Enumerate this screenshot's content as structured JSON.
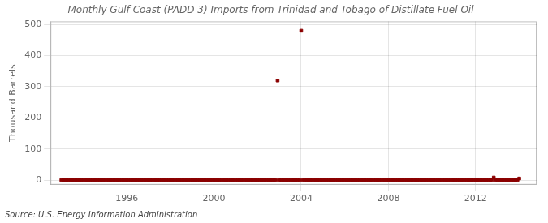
{
  "chart_data": {
    "type": "scatter",
    "title": "Monthly Gulf Coast (PADD 3) Imports from Trinidad and Tobago of Distillate Fuel Oil",
    "ylabel": "Thousand Barrels",
    "source": "Source: U.S. Energy Information Administration",
    "color": "#8b0000",
    "marker": "square",
    "grid": true,
    "xlim": [
      1992.5,
      2014.8
    ],
    "ylim": [
      -15,
      510
    ],
    "xticks": [
      1996,
      2000,
      2004,
      2008,
      2012
    ],
    "yticks": [
      0,
      100,
      200,
      300,
      400,
      500
    ],
    "x": [
      1993.0,
      1993.083,
      1993.167,
      1993.25,
      1993.333,
      1993.417,
      1993.5,
      1993.583,
      1993.667,
      1993.75,
      1993.833,
      1993.917,
      1994.0,
      1994.083,
      1994.167,
      1994.25,
      1994.333,
      1994.417,
      1994.5,
      1994.583,
      1994.667,
      1994.75,
      1994.833,
      1994.917,
      1995.0,
      1995.083,
      1995.167,
      1995.25,
      1995.333,
      1995.417,
      1995.5,
      1995.583,
      1995.667,
      1995.75,
      1995.833,
      1995.917,
      1996.0,
      1996.083,
      1996.167,
      1996.25,
      1996.333,
      1996.417,
      1996.5,
      1996.583,
      1996.667,
      1996.75,
      1996.833,
      1996.917,
      1997.0,
      1997.083,
      1997.167,
      1997.25,
      1997.333,
      1997.417,
      1997.5,
      1997.583,
      1997.667,
      1997.75,
      1997.833,
      1997.917,
      1998.0,
      1998.083,
      1998.167,
      1998.25,
      1998.333,
      1998.417,
      1998.5,
      1998.583,
      1998.667,
      1998.75,
      1998.833,
      1998.917,
      1999.0,
      1999.083,
      1999.167,
      1999.25,
      1999.333,
      1999.417,
      1999.5,
      1999.583,
      1999.667,
      1999.75,
      1999.833,
      1999.917,
      2000.0,
      2000.083,
      2000.167,
      2000.25,
      2000.333,
      2000.417,
      2000.5,
      2000.583,
      2000.667,
      2000.75,
      2000.833,
      2000.917,
      2001.0,
      2001.083,
      2001.167,
      2001.25,
      2001.333,
      2001.417,
      2001.5,
      2001.583,
      2001.667,
      2001.75,
      2001.833,
      2001.917,
      2002.0,
      2002.083,
      2002.167,
      2002.25,
      2002.333,
      2002.417,
      2002.5,
      2002.583,
      2002.667,
      2002.75,
      2002.833,
      2002.917,
      2003.0,
      2003.083,
      2003.167,
      2003.25,
      2003.333,
      2003.417,
      2003.5,
      2003.583,
      2003.667,
      2003.75,
      2003.833,
      2003.917,
      2004.0,
      2004.083,
      2004.167,
      2004.25,
      2004.333,
      2004.417,
      2004.5,
      2004.583,
      2004.667,
      2004.75,
      2004.833,
      2004.917,
      2005.0,
      2005.083,
      2005.167,
      2005.25,
      2005.333,
      2005.417,
      2005.5,
      2005.583,
      2005.667,
      2005.75,
      2005.833,
      2005.917,
      2006.0,
      2006.083,
      2006.167,
      2006.25,
      2006.333,
      2006.417,
      2006.5,
      2006.583,
      2006.667,
      2006.75,
      2006.833,
      2006.917,
      2007.0,
      2007.083,
      2007.167,
      2007.25,
      2007.333,
      2007.417,
      2007.5,
      2007.583,
      2007.667,
      2007.75,
      2007.833,
      2007.917,
      2008.0,
      2008.083,
      2008.167,
      2008.25,
      2008.333,
      2008.417,
      2008.5,
      2008.583,
      2008.667,
      2008.75,
      2008.833,
      2008.917,
      2009.0,
      2009.083,
      2009.167,
      2009.25,
      2009.333,
      2009.417,
      2009.5,
      2009.583,
      2009.667,
      2009.75,
      2009.833,
      2009.917,
      2010.0,
      2010.083,
      2010.167,
      2010.25,
      2010.333,
      2010.417,
      2010.5,
      2010.583,
      2010.667,
      2010.75,
      2010.833,
      2010.917,
      2011.0,
      2011.083,
      2011.167,
      2011.25,
      2011.333,
      2011.417,
      2011.5,
      2011.583,
      2011.667,
      2011.75,
      2011.833,
      2011.917,
      2012.0,
      2012.083,
      2012.167,
      2012.25,
      2012.333,
      2012.417,
      2012.5,
      2012.583,
      2012.667,
      2012.75,
      2012.833,
      2012.917,
      2013.0,
      2013.083,
      2013.167,
      2013.25,
      2013.333,
      2013.417,
      2013.5,
      2013.583,
      2013.667,
      2013.75,
      2013.833,
      2013.917,
      2014.0
    ],
    "values": [
      0,
      0,
      0,
      0,
      0,
      0,
      0,
      0,
      0,
      0,
      0,
      0,
      0,
      0,
      0,
      0,
      0,
      0,
      0,
      0,
      0,
      0,
      0,
      0,
      0,
      0,
      0,
      0,
      0,
      0,
      0,
      0,
      0,
      0,
      0,
      0,
      0,
      0,
      0,
      0,
      0,
      0,
      0,
      0,
      0,
      0,
      0,
      0,
      0,
      0,
      0,
      0,
      0,
      0,
      0,
      0,
      0,
      0,
      0,
      0,
      0,
      0,
      0,
      0,
      0,
      0,
      0,
      0,
      0,
      0,
      0,
      0,
      0,
      0,
      0,
      0,
      0,
      0,
      0,
      0,
      0,
      0,
      0,
      0,
      0,
      0,
      0,
      0,
      0,
      0,
      0,
      0,
      0,
      0,
      0,
      0,
      0,
      0,
      0,
      0,
      0,
      0,
      0,
      0,
      0,
      0,
      0,
      0,
      0,
      0,
      0,
      0,
      0,
      0,
      0,
      0,
      0,
      0,
      0,
      320,
      0,
      0,
      0,
      0,
      0,
      0,
      0,
      0,
      0,
      0,
      0,
      0,
      480,
      0,
      0,
      0,
      0,
      0,
      0,
      0,
      0,
      0,
      0,
      0,
      0,
      0,
      0,
      0,
      0,
      0,
      0,
      0,
      0,
      0,
      0,
      0,
      0,
      0,
      0,
      0,
      0,
      0,
      0,
      0,
      0,
      0,
      0,
      0,
      0,
      0,
      0,
      0,
      0,
      0,
      0,
      0,
      0,
      0,
      0,
      0,
      0,
      0,
      0,
      0,
      0,
      0,
      0,
      0,
      0,
      0,
      0,
      0,
      0,
      0,
      0,
      0,
      0,
      0,
      0,
      0,
      0,
      0,
      0,
      0,
      0,
      0,
      0,
      0,
      0,
      0,
      0,
      0,
      0,
      0,
      0,
      0,
      0,
      0,
      0,
      0,
      0,
      0,
      0,
      0,
      0,
      0,
      0,
      0,
      0,
      0,
      0,
      0,
      0,
      0,
      0,
      0,
      0,
      0,
      8,
      0,
      0,
      0,
      0,
      0,
      0,
      0,
      0,
      0,
      0,
      0,
      0,
      0,
      5
    ]
  }
}
